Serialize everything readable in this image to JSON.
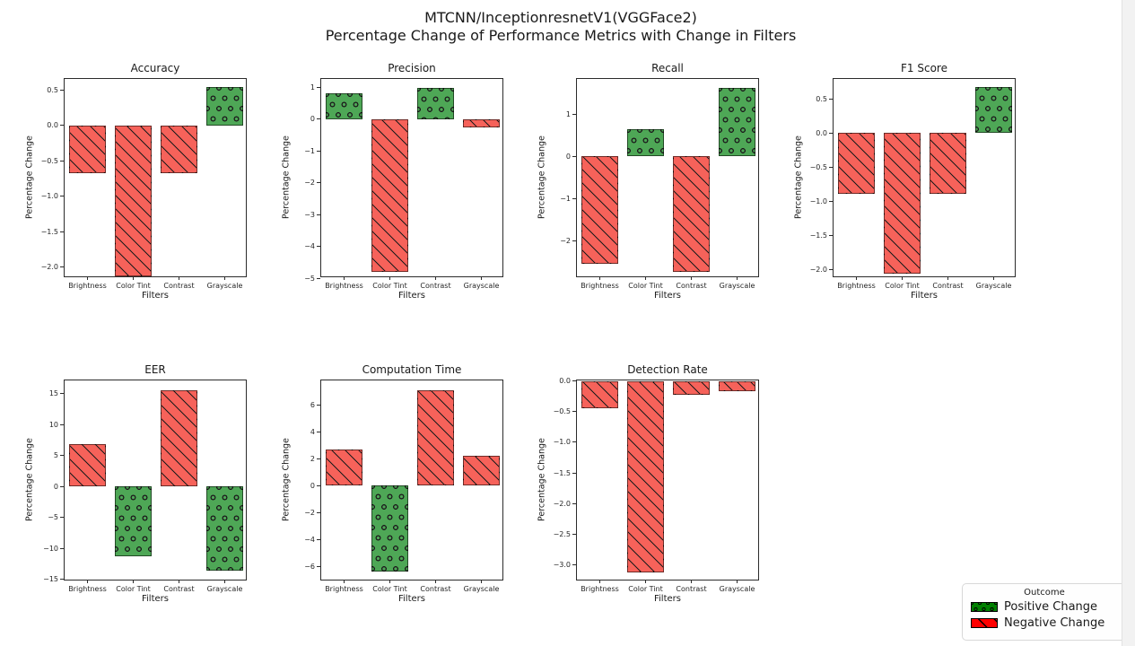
{
  "title": {
    "line1": "MTCNN/InceptionresnetV1(VGGFace2)",
    "line2": "Percentage Change of Performance Metrics with Change in Filters"
  },
  "colors": {
    "positive_bar": "#4ea756",
    "negative_bar": "#f6625a",
    "legend_positive": "#008000",
    "legend_negative": "#ff0000",
    "hatch": "#1c1c1c"
  },
  "legend": {
    "title": "Outcome",
    "items": [
      {
        "label": "Positive Change",
        "outcome": "positive",
        "hatch": "circles"
      },
      {
        "label": "Negative Change",
        "outcome": "negative",
        "hatch": "diagonal"
      }
    ]
  },
  "chart_data": {
    "type": "bar",
    "categories": [
      "Brightness",
      "Color Tint",
      "Contrast",
      "Grayscale"
    ],
    "xlabel": "Filters",
    "ylabel": "Percentage Change",
    "grid": false,
    "legend_position": "lower right",
    "subplots": [
      {
        "id": "accuracy",
        "title": "Accuracy",
        "values": [
          -0.67,
          -2.13,
          -0.67,
          0.55
        ],
        "outcomes": [
          "negative",
          "negative",
          "negative",
          "positive"
        ],
        "yticks": [
          0.5,
          0.0,
          -0.5,
          -1.0,
          -1.5,
          -2.0
        ],
        "ytick_labels": [
          "0.5",
          "0.0",
          "−0.5",
          "−1.0",
          "−1.5",
          "−2.0"
        ],
        "ylim": [
          -2.16,
          0.66
        ]
      },
      {
        "id": "precision",
        "title": "Precision",
        "values": [
          0.8,
          -4.79,
          0.97,
          -0.26
        ],
        "outcomes": [
          "positive",
          "negative",
          "positive",
          "negative"
        ],
        "yticks": [
          1,
          0,
          -1,
          -2,
          -3,
          -4,
          -5
        ],
        "ytick_labels": [
          "1",
          "0",
          "−1",
          "−2",
          "−3",
          "−4",
          "−5"
        ],
        "ylim": [
          -5.0,
          1.26
        ]
      },
      {
        "id": "recall",
        "title": "Recall",
        "values": [
          -2.55,
          0.65,
          -2.75,
          1.62
        ],
        "outcomes": [
          "negative",
          "positive",
          "negative",
          "positive"
        ],
        "yticks": [
          1,
          0,
          -1,
          -2
        ],
        "ytick_labels": [
          "1",
          "0",
          "−1",
          "−2"
        ],
        "ylim": [
          -2.89,
          1.83
        ]
      },
      {
        "id": "f1-score",
        "title": "F1 Score",
        "values": [
          -0.89,
          -2.06,
          -0.89,
          0.67
        ],
        "outcomes": [
          "negative",
          "negative",
          "negative",
          "positive"
        ],
        "yticks": [
          0.5,
          0.0,
          -0.5,
          -1.0,
          -1.5,
          -2.0
        ],
        "ytick_labels": [
          "0.5",
          "0.0",
          "−0.5",
          "−1.0",
          "−1.5",
          "−2.0"
        ],
        "ylim": [
          -2.13,
          0.79
        ]
      },
      {
        "id": "eer",
        "title": "EER",
        "values": [
          6.9,
          -11.3,
          15.5,
          -13.6
        ],
        "outcomes": [
          "negative",
          "positive",
          "negative",
          "positive"
        ],
        "yticks": [
          15,
          10,
          5,
          0,
          -5,
          -10,
          -15
        ],
        "ytick_labels": [
          "15",
          "10",
          "5",
          "0",
          "−5",
          "−10",
          "−15"
        ],
        "ylim": [
          -15.3,
          17.1
        ]
      },
      {
        "id": "computation-time",
        "title": "Computation Time",
        "values": [
          2.7,
          -6.4,
          7.1,
          2.2
        ],
        "outcomes": [
          "negative",
          "positive",
          "negative",
          "negative"
        ],
        "yticks": [
          6,
          4,
          2,
          0,
          -2,
          -4,
          -6
        ],
        "ytick_labels": [
          "6",
          "4",
          "2",
          "0",
          "−2",
          "−4",
          "−6"
        ],
        "ylim": [
          -7.13,
          7.8
        ]
      },
      {
        "id": "detection-rate",
        "title": "Detection Rate",
        "values": [
          -0.44,
          -3.12,
          -0.23,
          -0.17
        ],
        "outcomes": [
          "negative",
          "negative",
          "negative",
          "negative"
        ],
        "yticks": [
          0.0,
          -0.5,
          -1.0,
          -1.5,
          -2.0,
          -2.5,
          -3.0
        ],
        "ytick_labels": [
          "0.0",
          "−0.5",
          "−1.0",
          "−1.5",
          "−2.0",
          "−2.5",
          "−3.0"
        ],
        "ylim": [
          -3.27,
          0.01
        ]
      }
    ]
  }
}
